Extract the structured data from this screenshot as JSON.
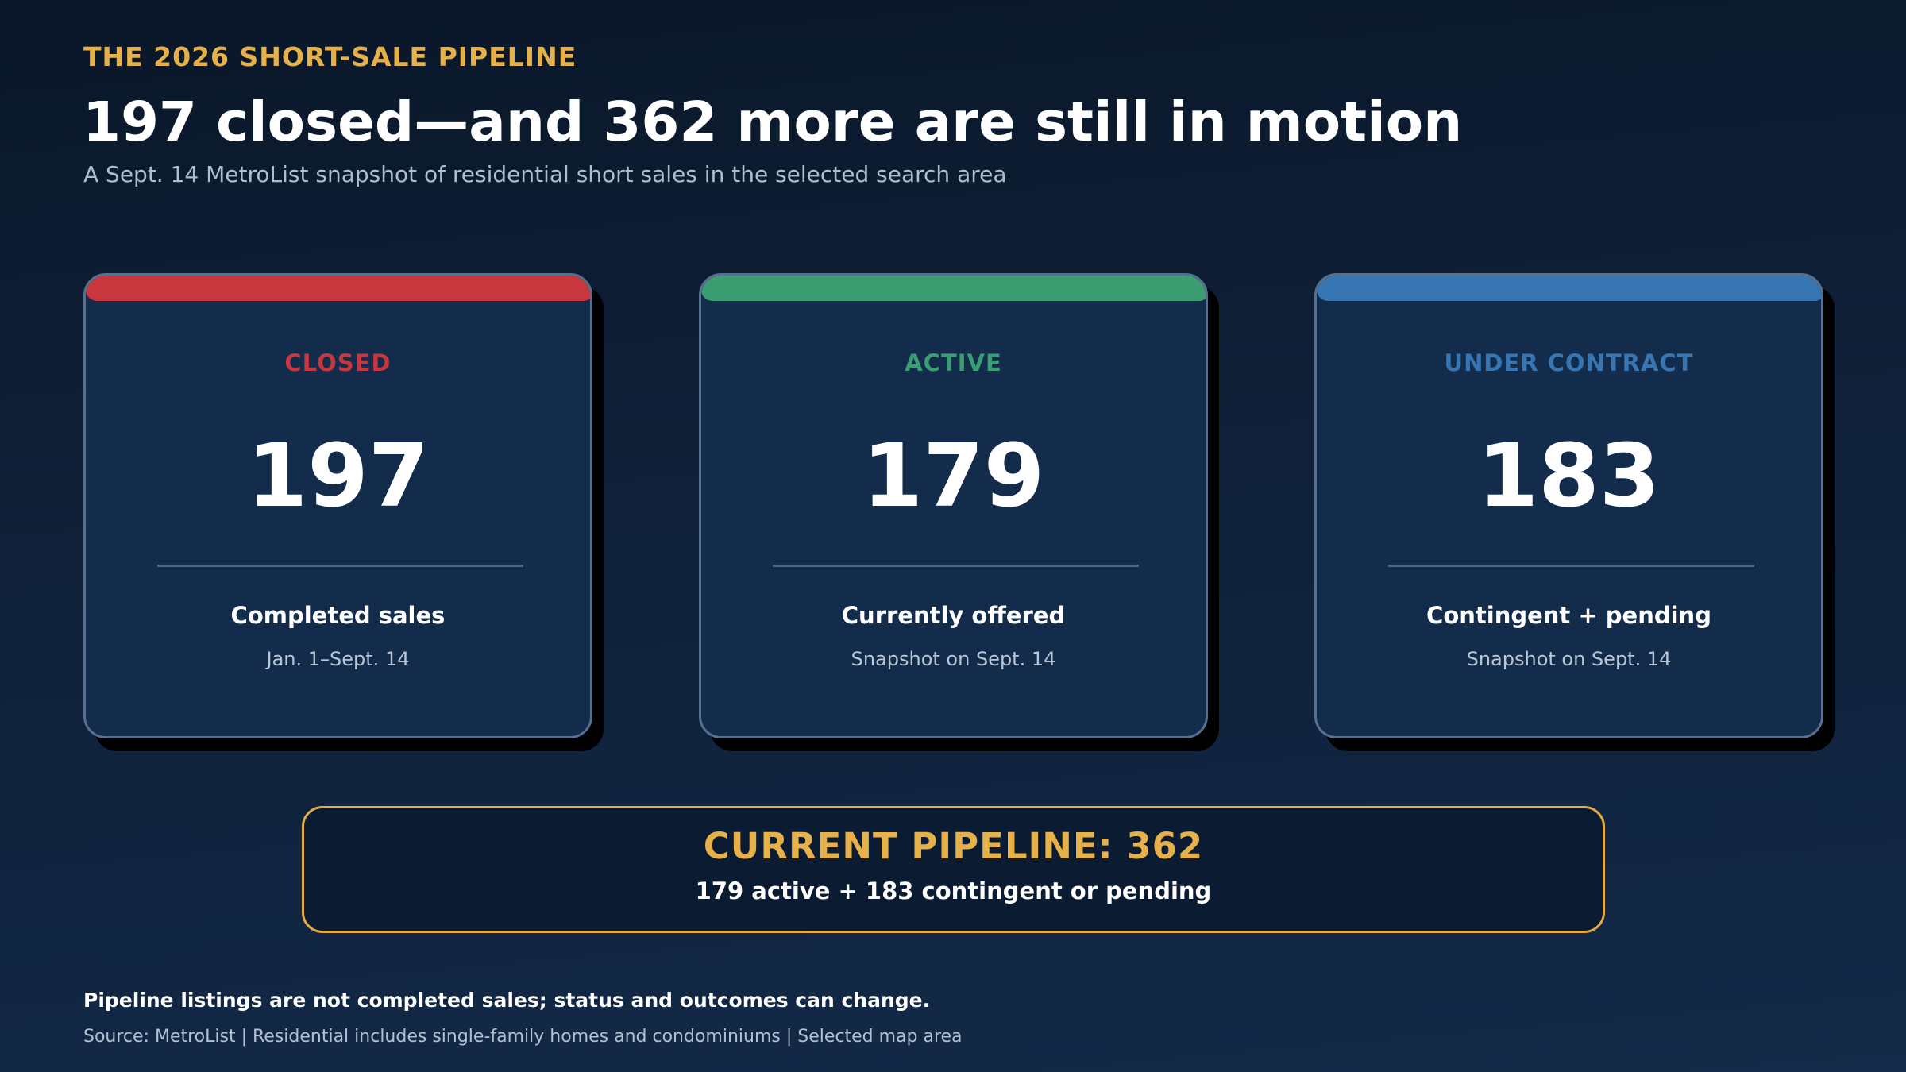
{
  "header": {
    "eyebrow": "THE 2026 SHORT-SALE PIPELINE",
    "headline": "197 closed—and 362 more are still in motion",
    "subhead": "A Sept. 14 MetroList snapshot of residential short sales in the selected search area"
  },
  "cards": [
    {
      "status": "CLOSED",
      "value": "197",
      "label": "Completed sales",
      "sublabel": "Jan. 1–Sept. 14",
      "accent": "#c8363e"
    },
    {
      "status": "ACTIVE",
      "value": "179",
      "label": "Currently offered",
      "sublabel": "Snapshot on Sept. 14",
      "accent": "#3a9e72"
    },
    {
      "status": "UNDER CONTRACT",
      "value": "183",
      "label": "Contingent + pending",
      "sublabel": "Snapshot on Sept. 14",
      "accent": "#3776b3"
    }
  ],
  "pipeline": {
    "title": "CURRENT PIPELINE: 362",
    "subtitle": "179 active + 183 contingent or pending",
    "accent": "#e2ad47"
  },
  "footer": {
    "note": "Pipeline listings are not completed sales; status and outcomes can change.",
    "source": "Source: MetroList | Residential includes single-family homes and condominiums | Selected map area"
  }
}
